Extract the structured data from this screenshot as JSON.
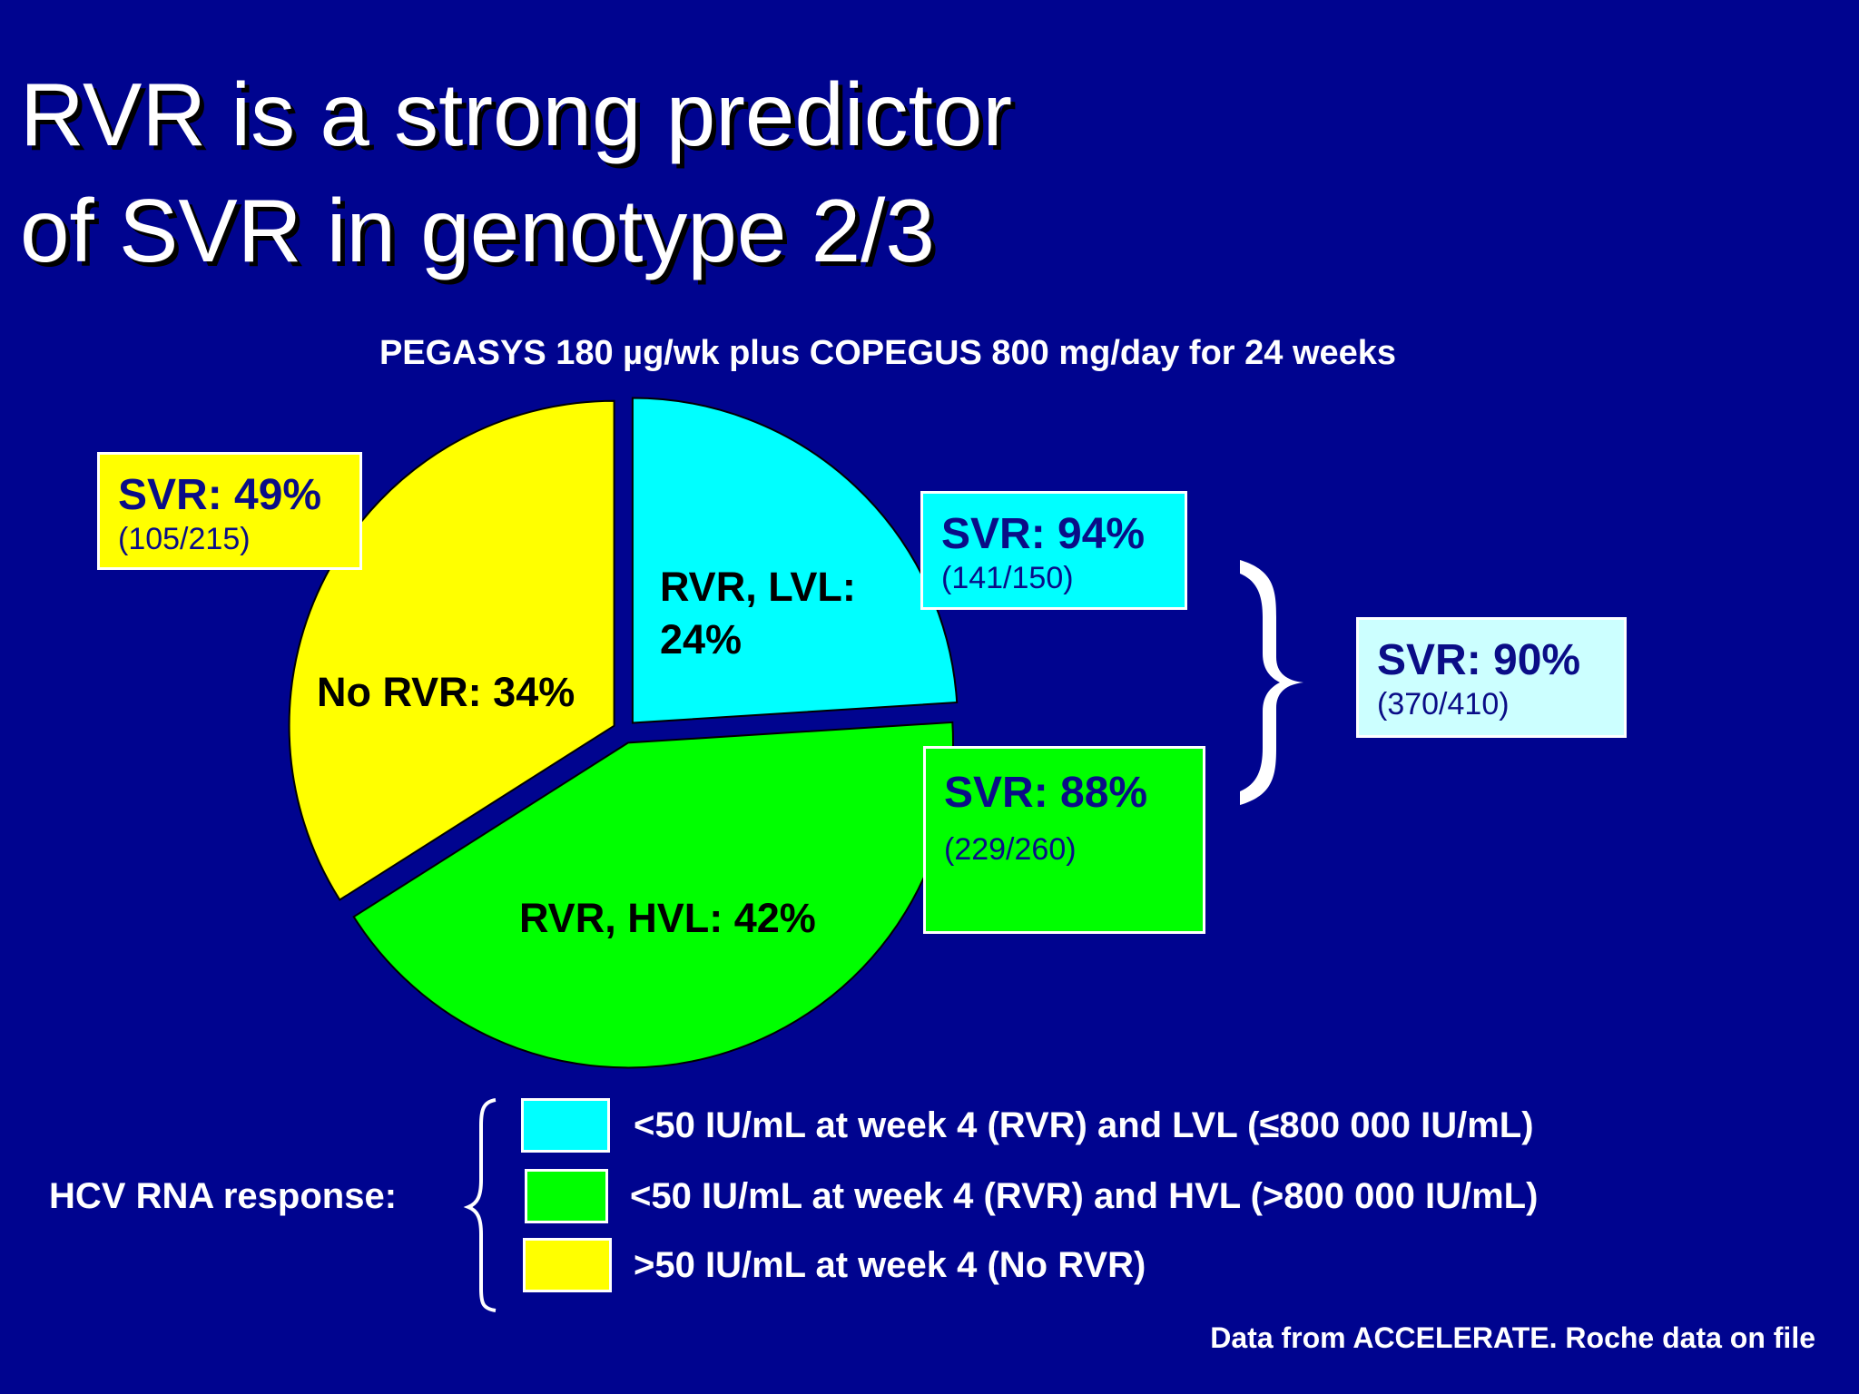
{
  "title": {
    "line1": "RVR is a strong predictor",
    "line2": "of SVR in genotype 2/3"
  },
  "subtitle": "PEGASYS 180 µg/wk plus COPEGUS 800 mg/day for 24 weeks",
  "chart_data": {
    "type": "pie",
    "slices": [
      {
        "label": "RVR, LVL: 24%",
        "value": 24,
        "color": "#00ffff"
      },
      {
        "label": "RVR, HVL: 42%",
        "value": 42,
        "color": "#00ff00"
      },
      {
        "label": "No RVR: 34%",
        "value": 34,
        "color": "#ffff00"
      }
    ],
    "label_lines": {
      "lvl": [
        "RVR, LVL:",
        "24%"
      ],
      "hvl": "RVR, HVL: 42%",
      "norvr": "No RVR: 34%"
    },
    "callouts": [
      {
        "id": "lvl",
        "svr": "SVR: 94%",
        "counts": "(141/150)",
        "color": "#00ffff"
      },
      {
        "id": "hvl",
        "svr": "SVR: 88%",
        "counts": "(229/260)",
        "color": "#00ff00"
      },
      {
        "id": "norvr",
        "svr": "SVR: 49%",
        "counts": "(105/215)",
        "color": "#ffff00"
      },
      {
        "id": "rvr_total",
        "svr": "SVR: 90%",
        "counts": "(370/410)",
        "color": "#ccffff"
      }
    ],
    "legend": {
      "title": "HCV RNA response:",
      "items": [
        {
          "label": "<50 IU/mL at week 4 (RVR) and LVL (≤800 000 IU/mL)",
          "color": "#00ffff"
        },
        {
          "label": "<50 IU/mL at week 4 (RVR) and HVL (>800 000 IU/mL)",
          "color": "#00ff00"
        },
        {
          "label": ">50 IU/mL at week 4 (No RVR)",
          "color": "#ffff00"
        }
      ]
    }
  },
  "footnote": "Data from ACCELERATE. Roche data on file"
}
